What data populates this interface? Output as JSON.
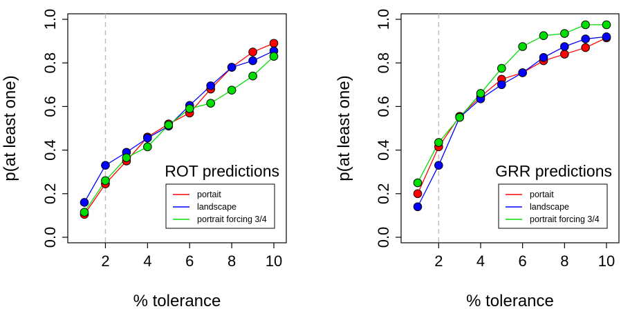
{
  "chart_data": [
    {
      "type": "line",
      "x": [
        1,
        2,
        3,
        4,
        5,
        6,
        7,
        8,
        9,
        10
      ],
      "xlabel": "% tolerance",
      "ylabel": "p(at least one)",
      "xlim": [
        1,
        10
      ],
      "ylim": [
        0,
        1
      ],
      "xticks": [
        "2",
        "4",
        "6",
        "8",
        "10"
      ],
      "yticks": [
        "0.0",
        "0.2",
        "0.4",
        "0.6",
        "0.8",
        "1.0"
      ],
      "reference_line_x": 2,
      "annotation": "ROT predictions",
      "legend_position": "bottom-right",
      "series": [
        {
          "name": "portait",
          "color": "#ff0000",
          "values": [
            0.105,
            0.245,
            0.35,
            0.46,
            0.52,
            0.57,
            0.68,
            0.78,
            0.85,
            0.89
          ]
        },
        {
          "name": "landscape",
          "color": "#0000ff",
          "values": [
            0.16,
            0.33,
            0.39,
            0.455,
            0.51,
            0.605,
            0.695,
            0.78,
            0.81,
            0.855
          ]
        },
        {
          "name": "portrait forcing 3/4",
          "color": "#00dd00",
          "values": [
            0.115,
            0.26,
            0.365,
            0.415,
            0.515,
            0.59,
            0.615,
            0.675,
            0.74,
            0.83
          ]
        }
      ]
    },
    {
      "type": "line",
      "x": [
        1,
        2,
        3,
        4,
        5,
        6,
        7,
        8,
        9,
        10
      ],
      "xlabel": "% tolerance",
      "ylabel": "p(at least one)",
      "xlim": [
        1,
        10
      ],
      "ylim": [
        0,
        1
      ],
      "xticks": [
        "2",
        "4",
        "6",
        "8",
        "10"
      ],
      "yticks": [
        "0.0",
        "0.2",
        "0.4",
        "0.6",
        "0.8",
        "1.0"
      ],
      "reference_line_x": 2,
      "annotation": "GRR predictions",
      "legend_position": "bottom-right",
      "series": [
        {
          "name": "portait",
          "color": "#ff0000",
          "values": [
            0.2,
            0.415,
            0.555,
            0.645,
            0.725,
            0.755,
            0.81,
            0.84,
            0.87,
            0.915
          ]
        },
        {
          "name": "landscape",
          "color": "#0000ff",
          "values": [
            0.14,
            0.33,
            0.55,
            0.635,
            0.7,
            0.755,
            0.825,
            0.875,
            0.91,
            0.92
          ]
        },
        {
          "name": "portrait forcing 3/4",
          "color": "#00dd00",
          "values": [
            0.25,
            0.435,
            0.55,
            0.66,
            0.775,
            0.875,
            0.925,
            0.935,
            0.975,
            0.975
          ]
        }
      ]
    }
  ]
}
